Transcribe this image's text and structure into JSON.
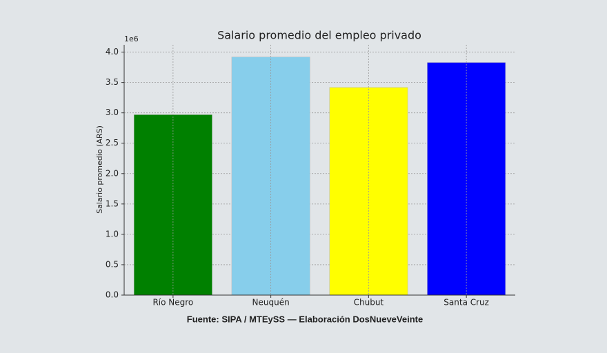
{
  "chart_data": {
    "type": "bar",
    "title": "Salario promedio del empleo privado",
    "y_label": "Salario promedio (ARS)",
    "y_offset_label": "1e6",
    "footer": "Fuente: SIPA / MTEySS — Elaboración DosNueveVeinte",
    "categories": [
      "Río Negro",
      "Neuquén",
      "Chubut",
      "Santa Cruz"
    ],
    "values": [
      2.97,
      3.92,
      3.42,
      3.83
    ],
    "colors": [
      "#008000",
      "#87ceeb",
      "#ffff00",
      "#0000ff"
    ],
    "ylim": [
      0,
      4.12
    ],
    "yticks": [
      {
        "value": 0,
        "label": "0.0"
      },
      {
        "value": 0.5,
        "label": "0.5"
      },
      {
        "value": 1,
        "label": "1.0"
      },
      {
        "value": 1.5,
        "label": "1.5"
      },
      {
        "value": 2,
        "label": "2.0"
      },
      {
        "value": 2.5,
        "label": "2.5"
      },
      {
        "value": 3,
        "label": "3.0"
      },
      {
        "value": 3.5,
        "label": "3.5"
      },
      {
        "value": 4,
        "label": "4.0"
      }
    ],
    "grid": true
  }
}
